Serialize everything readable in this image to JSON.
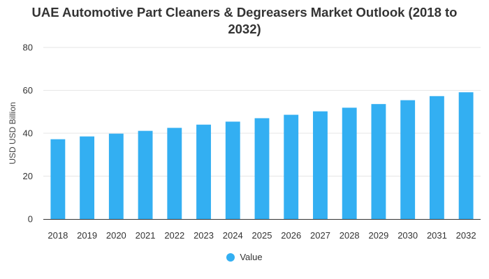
{
  "chart_data": {
    "type": "bar",
    "title": "UAE Automotive Part Cleaners & Degreasers Market Outlook (2018 to 2032)",
    "title_lines": [
      "UAE Automotive Part Cleaners & Degreasers Market Outlook (2018 to",
      "2032)"
    ],
    "xlabel": "",
    "ylabel": "USD USD Billion",
    "categories": [
      "2018",
      "2019",
      "2020",
      "2021",
      "2022",
      "2023",
      "2024",
      "2025",
      "2026",
      "2027",
      "2028",
      "2029",
      "2030",
      "2031",
      "2032"
    ],
    "series": [
      {
        "name": "Value",
        "color": "#33aff2",
        "values": [
          37.2,
          38.5,
          39.8,
          41.1,
          42.5,
          44.0,
          45.4,
          47.0,
          48.6,
          50.2,
          51.9,
          53.6,
          55.4,
          57.3,
          59.1
        ]
      }
    ],
    "ylim": [
      0,
      80
    ],
    "yticks": [
      "0",
      "20",
      "40",
      "60",
      "80"
    ],
    "ytick_values": [
      0,
      20,
      40,
      60,
      80
    ],
    "grid": true,
    "legend_position": "bottom"
  },
  "colors": {
    "bar": "#33aff2",
    "grid": "#e6e6e6",
    "axis": "#333333"
  }
}
